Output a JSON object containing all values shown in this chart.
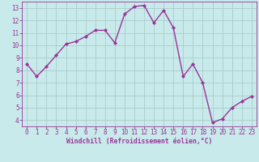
{
  "x": [
    0,
    1,
    2,
    3,
    4,
    5,
    6,
    7,
    8,
    9,
    10,
    11,
    12,
    13,
    14,
    15,
    16,
    17,
    18,
    19,
    20,
    21,
    22,
    23
  ],
  "y": [
    8.5,
    7.5,
    8.3,
    9.2,
    10.1,
    10.3,
    10.7,
    11.2,
    11.2,
    10.2,
    12.5,
    13.1,
    13.2,
    11.8,
    12.8,
    11.4,
    7.5,
    8.5,
    7.0,
    3.8,
    4.1,
    5.0,
    5.5,
    5.9
  ],
  "line_color": "#993399",
  "marker": "D",
  "marker_size": 2.0,
  "bg_color": "#c8eaea",
  "grid_color": "#aacccc",
  "xlabel": "Windchill (Refroidissement éolien,°C)",
  "xlabel_color": "#993399",
  "tick_color": "#993399",
  "xlim": [
    -0.5,
    23.5
  ],
  "ylim": [
    3.5,
    13.5
  ],
  "yticks": [
    4,
    5,
    6,
    7,
    8,
    9,
    10,
    11,
    12,
    13
  ],
  "xticks": [
    0,
    1,
    2,
    3,
    4,
    5,
    6,
    7,
    8,
    9,
    10,
    11,
    12,
    13,
    14,
    15,
    16,
    17,
    18,
    19,
    20,
    21,
    22,
    23
  ],
  "linewidth": 1.0,
  "tick_fontsize": 5.5,
  "xlabel_fontsize": 5.8
}
